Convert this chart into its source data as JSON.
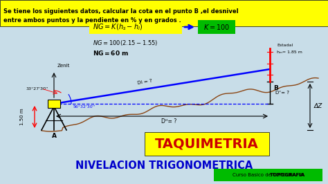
{
  "bg_color": "#c8dde8",
  "title_bar_color": "#ffff00",
  "title_text_line1": "Se tiene los siguientes datos, calcular la cota en el punto B ,el desnivel",
  "title_text_line2": "entre ambos puntos y la pendiente en % y en grados .",
  "angle1": "33°27'30''",
  "angle2": "56°32'30''",
  "dh_label": "Dᴴ= ?",
  "dv_label": "Dᵛ= ?",
  "di_label": "Di = ?",
  "dz_label": "ΔZ",
  "height_instrument": "1.50 m",
  "estadal_label": "Estadal",
  "estadal_h": "hₘ= 1.85 m",
  "point_a": "A",
  "point_b": "B",
  "zenit_label": "Zenit",
  "main_title": "TAQUIMETRIA",
  "sub_title": "NIVELACION TRIGONOMETRICA",
  "curso_label": "Curso Basico de ",
  "topografia_label": "TOPOGRAFIA",
  "taquimetria_bg": "#ffff00",
  "main_title_color": "#cc0000",
  "sub_title_color": "#0000cc",
  "curso_bg": "#00bb00",
  "k_bg": "#00bb00",
  "formula_bg": "#ffff00"
}
